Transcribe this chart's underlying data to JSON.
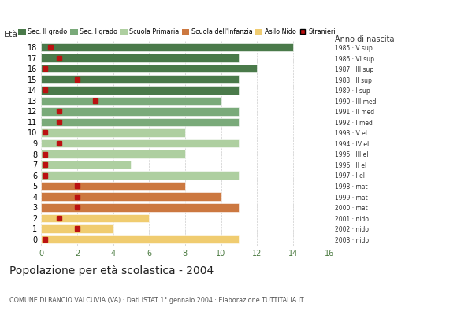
{
  "ages": [
    18,
    17,
    16,
    15,
    14,
    13,
    12,
    11,
    10,
    9,
    8,
    7,
    6,
    5,
    4,
    3,
    2,
    1,
    0
  ],
  "bar_values": [
    14,
    11,
    12,
    11,
    11,
    10,
    11,
    11,
    8,
    11,
    8,
    5,
    11,
    8,
    10,
    11,
    6,
    4,
    11
  ],
  "stranieri": [
    0.5,
    1,
    0.2,
    2,
    0.2,
    3,
    1,
    1,
    0.2,
    1,
    0.2,
    0.2,
    0.2,
    2,
    2,
    2,
    1,
    2,
    0.2
  ],
  "bar_colors": [
    "#4a7a4a",
    "#4a7a4a",
    "#4a7a4a",
    "#4a7a4a",
    "#4a7a4a",
    "#7aaa7a",
    "#7aaa7a",
    "#7aaa7a",
    "#aecfa0",
    "#aecfa0",
    "#aecfa0",
    "#aecfa0",
    "#aecfa0",
    "#cc7840",
    "#cc7840",
    "#cc7840",
    "#f0cc70",
    "#f0cc70",
    "#f0cc70"
  ],
  "right_labels": [
    "1985 · V sup",
    "1986 · VI sup",
    "1987 · III sup",
    "1988 · II sup",
    "1989 · I sup",
    "1990 · III med",
    "1991 · II med",
    "1992 · I med",
    "1993 · V el",
    "1994 · IV el",
    "1995 · III el",
    "1996 · II el",
    "1997 · I el",
    "1998 · mat",
    "1999 · mat",
    "2000 · mat",
    "2001 · nido",
    "2002 · nido",
    "2003 · nido"
  ],
  "legend_labels": [
    "Sec. II grado",
    "Sec. I grado",
    "Scuola Primaria",
    "Scuola dell'Infanzia",
    "Asilo Nido",
    "Stranieri"
  ],
  "legend_colors": [
    "#4a7a4a",
    "#7aaa7a",
    "#aecfa0",
    "#cc7840",
    "#f0cc70",
    "#bb1111"
  ],
  "title": "Popolazione per età scolastica - 2004",
  "subtitle": "COMUNE DI RANCIO VALCUVIA (VA) · Dati ISTAT 1° gennaio 2004 · Elaborazione TUTTITALIA.IT",
  "xlabel_eta": "Età",
  "xlabel_anno": "Anno di nascita",
  "xlim": [
    0,
    16
  ],
  "xticks": [
    0,
    2,
    4,
    6,
    8,
    10,
    12,
    14,
    16
  ],
  "stranieri_color": "#bb1111",
  "stranieri_size": 4,
  "bg_color": "#ffffff",
  "grid_color": "#cccccc"
}
